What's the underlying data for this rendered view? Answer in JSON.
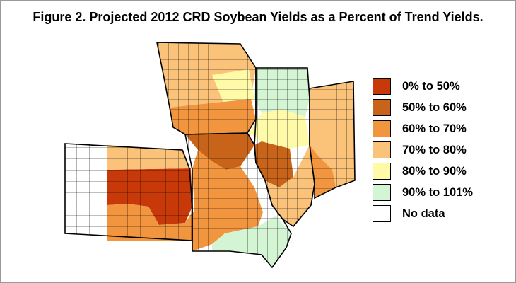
{
  "figure": {
    "title": "Figure 2. Projected 2012 CRD Soybean Yields as a Percent of Trend Yields."
  },
  "legend": [
    {
      "label": "0% to 50%",
      "color": "#C8390A"
    },
    {
      "label": "50% to 60%",
      "color": "#C8641A"
    },
    {
      "label": "60% to 70%",
      "color": "#F2953F"
    },
    {
      "label": "70% to 80%",
      "color": "#FBC27A"
    },
    {
      "label": "80% to 90%",
      "color": "#FFFAA8"
    },
    {
      "label": "90% to 101%",
      "color": "#D4F5D4"
    },
    {
      "label": "No data",
      "color": "#FFFFFF"
    }
  ],
  "map": {
    "regions": [
      {
        "name": "kansas-west",
        "class_index": 6
      },
      {
        "name": "kansas-central-east",
        "class_index": 0
      },
      {
        "name": "kansas-south",
        "class_index": 2
      },
      {
        "name": "kansas-north",
        "class_index": 3
      },
      {
        "name": "iowa-north",
        "class_index": 3
      },
      {
        "name": "iowa-northeast",
        "class_index": 4
      },
      {
        "name": "iowa-south",
        "class_index": 2
      },
      {
        "name": "missouri-north",
        "class_index": 1
      },
      {
        "name": "missouri-central",
        "class_index": 2
      },
      {
        "name": "missouri-south",
        "class_index": 2
      },
      {
        "name": "missouri-southeast",
        "class_index": 5
      },
      {
        "name": "illinois-north",
        "class_index": 5
      },
      {
        "name": "illinois-central",
        "class_index": 4
      },
      {
        "name": "illinois-west-central",
        "class_index": 1
      },
      {
        "name": "illinois-south",
        "class_index": 3
      },
      {
        "name": "indiana",
        "class_index": 3
      },
      {
        "name": "indiana-southwest",
        "class_index": 2
      }
    ]
  }
}
